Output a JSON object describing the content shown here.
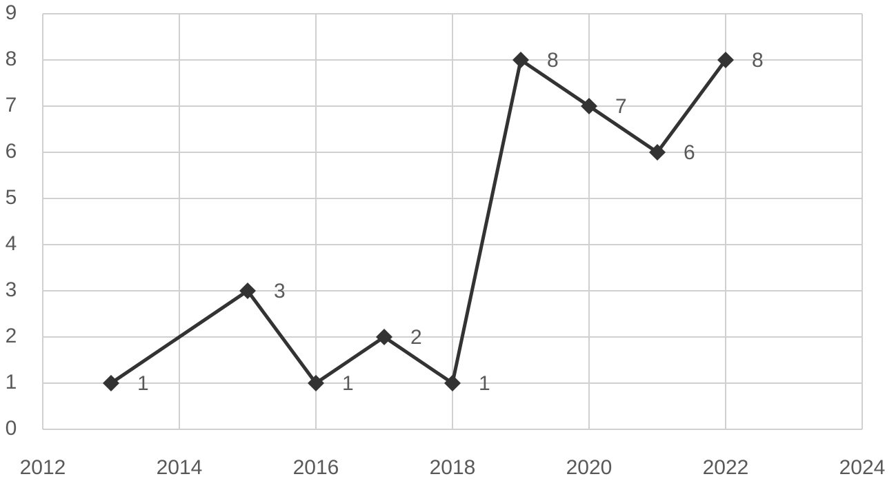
{
  "chart_data": {
    "type": "line",
    "x": [
      2013,
      2015,
      2016,
      2017,
      2018,
      2019,
      2020,
      2021,
      2022
    ],
    "series": [
      {
        "color": "#333333",
        "values": [
          1,
          3,
          1,
          2,
          1,
          8,
          7,
          6,
          8
        ]
      }
    ],
    "xlim": [
      2012,
      2024
    ],
    "xticks": [
      2012,
      2014,
      2016,
      2018,
      2020,
      2022,
      2024
    ],
    "ylim": [
      0,
      9
    ],
    "yticks": [
      0,
      1,
      2,
      3,
      4,
      5,
      6,
      7,
      8,
      9
    ],
    "grid": true
  }
}
